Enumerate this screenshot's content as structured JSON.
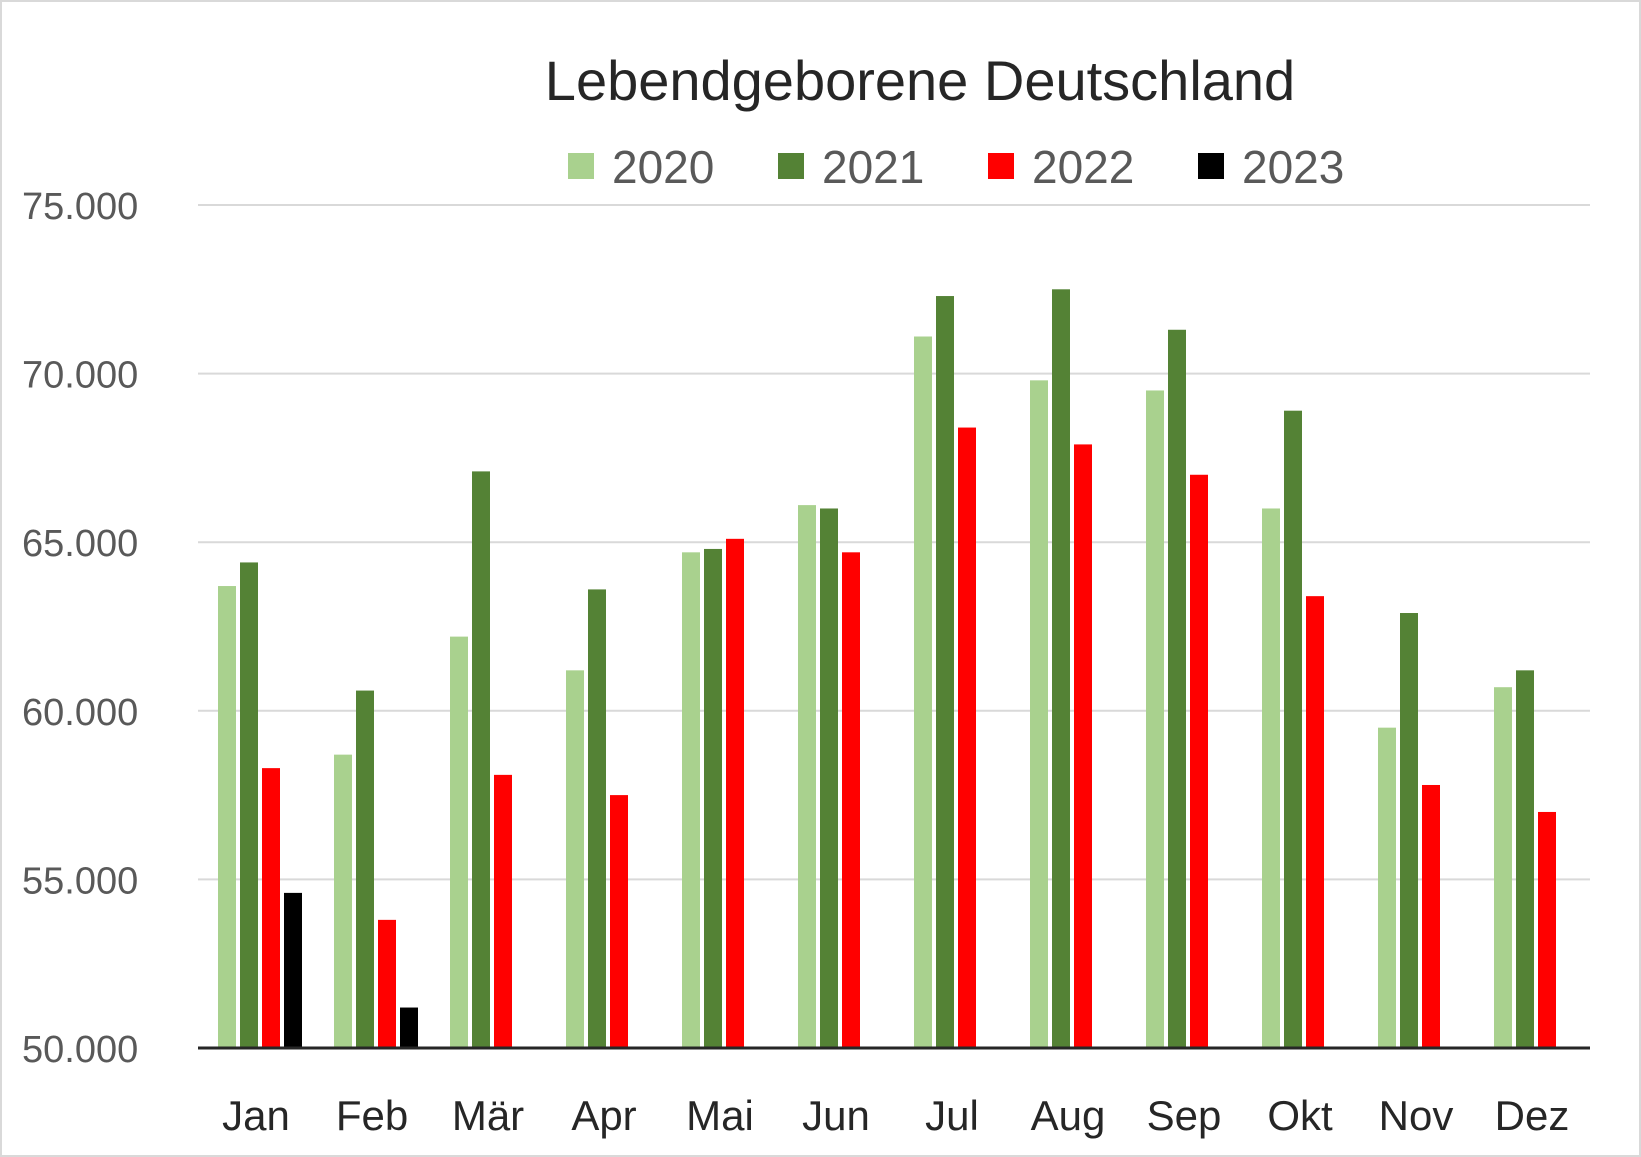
{
  "chart_data": {
    "type": "bar",
    "title": "Lebendgeborene Deutschland",
    "xlabel": "",
    "ylabel": "",
    "categories": [
      "Jan",
      "Feb",
      "Mär",
      "Apr",
      "Mai",
      "Jun",
      "Jul",
      "Aug",
      "Sep",
      "Okt",
      "Nov",
      "Dez"
    ],
    "series": [
      {
        "name": "2020",
        "color": "#a9d18e",
        "values": [
          63700,
          58700,
          62200,
          61200,
          64700,
          66100,
          71100,
          69800,
          69500,
          66000,
          59500,
          60700
        ]
      },
      {
        "name": "2021",
        "color": "#548235",
        "values": [
          64400,
          60600,
          67100,
          63600,
          64800,
          66000,
          72300,
          72500,
          71300,
          68900,
          62900,
          61200
        ]
      },
      {
        "name": "2022",
        "color": "#ff0000",
        "values": [
          58300,
          53800,
          58100,
          57500,
          65100,
          64700,
          68400,
          67900,
          67000,
          63400,
          57800,
          57000
        ]
      },
      {
        "name": "2023",
        "color": "#000000",
        "values": [
          54600,
          51200,
          null,
          null,
          null,
          null,
          null,
          null,
          null,
          null,
          null,
          null
        ]
      }
    ],
    "ylim": [
      50000,
      75000
    ],
    "yticks": [
      50000,
      55000,
      60000,
      65000,
      70000,
      75000
    ],
    "ytick_labels": [
      "50.000",
      "55.000",
      "60.000",
      "65.000",
      "70.000",
      "75.000"
    ],
    "grid": true,
    "legend_position": "top"
  }
}
